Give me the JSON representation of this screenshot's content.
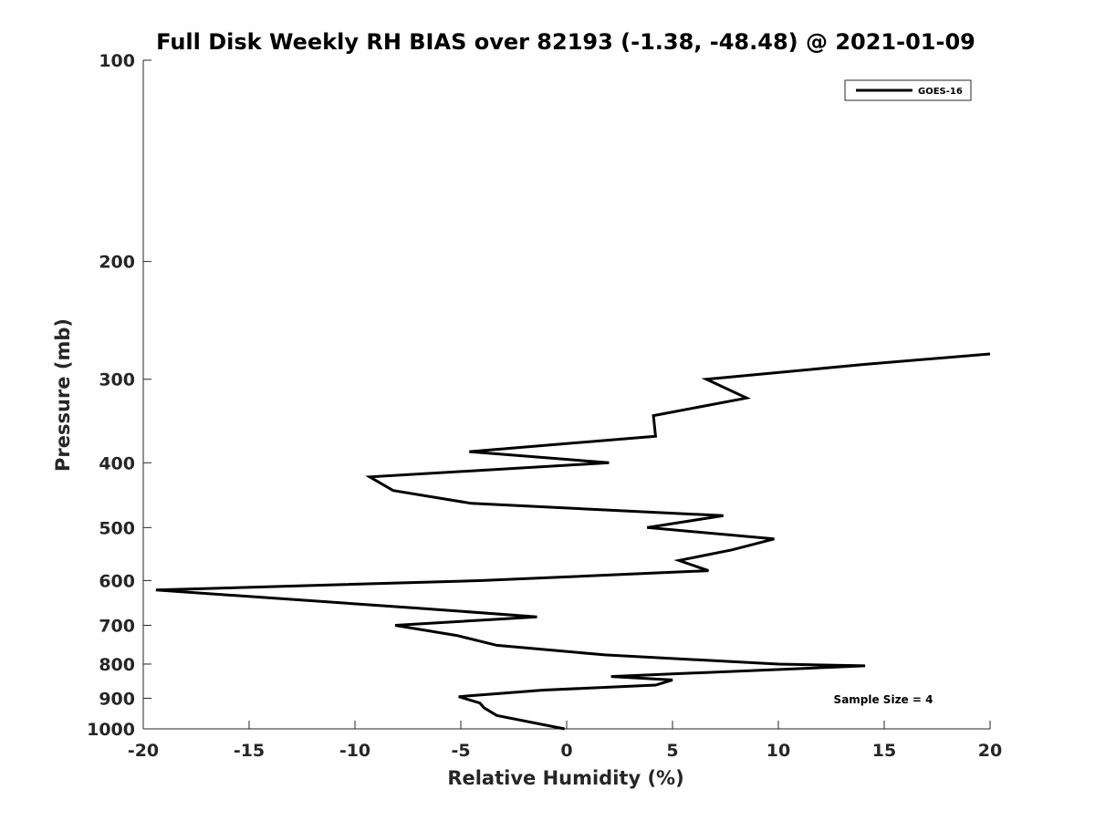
{
  "chart_data": {
    "type": "line",
    "title": "Full Disk Weekly RH BIAS over 82193 (-1.38, -48.48) @ 2021-01-09",
    "xlabel": "Relative Humidity (%)",
    "ylabel": "Pressure (mb)",
    "xlim": [
      -20,
      20
    ],
    "ylim": [
      100,
      1000
    ],
    "y_scale": "log",
    "y_reversed": true,
    "x_ticks": [
      "-20",
      "-15",
      "-10",
      "-5",
      "0",
      "5",
      "10",
      "15",
      "20"
    ],
    "y_ticks": [
      "100",
      "200",
      "300",
      "400",
      "500",
      "600",
      "700",
      "800",
      "900",
      "1000"
    ],
    "grid": false,
    "legend_position": "top-right",
    "axis_color": "#262626",
    "annotation": "Sample Size = 4",
    "series": [
      {
        "name": "GOES-16",
        "color": "#000000",
        "x": [
          20.0,
          14.1,
          6.6,
          8.5,
          4.1,
          4.2,
          -4.6,
          2.0,
          -9.3,
          -8.2,
          -4.5,
          7.4,
          3.8,
          9.8,
          7.8,
          5.3,
          6.7,
          -4.0,
          -19.4,
          -7.0,
          -1.4,
          -8.1,
          -5.2,
          -3.3,
          1.8,
          10.0,
          14.1,
          2.1,
          5.0,
          4.2,
          -1.1,
          -5.1,
          -4.1,
          -3.9,
          -3.3,
          -0.1
        ],
        "y": [
          275,
          285,
          300,
          320,
          340,
          365,
          385,
          400,
          420,
          440,
          460,
          480,
          500,
          520,
          540,
          560,
          580,
          600,
          620,
          660,
          680,
          700,
          725,
          750,
          775,
          800,
          805,
          835,
          845,
          860,
          875,
          895,
          915,
          930,
          955,
          1000
        ]
      }
    ]
  }
}
